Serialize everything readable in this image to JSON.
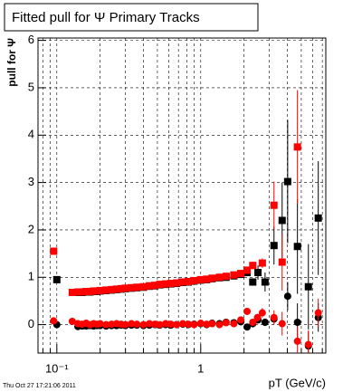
{
  "chart_data": {
    "type": "scatter",
    "title": "Fitted pull for  Ψ   Primary Tracks",
    "x_label": "pT (GeV/c)",
    "y_label": "pull for  Ψ",
    "timestamp": "Thu Oct 27 17:21:06 2011",
    "x_log": true,
    "grid": true,
    "xlim": [
      0.074,
      7.4
    ],
    "ylim": [
      -0.6,
      6.05
    ],
    "xticks": [
      {
        "value": 0.1,
        "label": "10⁻¹"
      },
      1
    ],
    "xminorticks": [
      0.08,
      0.09,
      0.2,
      0.3,
      0.4,
      0.5,
      0.6,
      0.7,
      0.8,
      0.9,
      2,
      3,
      4,
      5,
      6,
      7
    ],
    "yticks": [
      0,
      1,
      2,
      3,
      4,
      5,
      6
    ],
    "series": [
      {
        "color": "#000000",
        "marker": "square",
        "x": [
          0.1,
          0.14,
          0.15,
          0.16,
          0.17,
          0.18,
          0.19,
          0.2,
          0.22,
          0.24,
          0.26,
          0.28,
          0.3,
          0.33,
          0.36,
          0.4,
          0.44,
          0.48,
          0.52,
          0.57,
          0.62,
          0.68,
          0.75,
          0.82,
          0.9,
          1.0,
          1.1,
          1.2,
          1.35,
          1.5,
          1.7,
          1.9,
          2.1,
          2.3,
          2.5,
          2.8,
          3.23,
          3.68,
          4.02,
          4.7,
          5.6,
          6.56
        ],
        "values": [
          0.95,
          0.68,
          0.68,
          0.69,
          0.69,
          0.7,
          0.7,
          0.71,
          0.72,
          0.73,
          0.74,
          0.75,
          0.76,
          0.77,
          0.78,
          0.79,
          0.81,
          0.82,
          0.84,
          0.85,
          0.86,
          0.87,
          0.89,
          0.9,
          0.92,
          0.94,
          0.95,
          0.97,
          0.99,
          1.0,
          1.03,
          1.06,
          1.1,
          0.9,
          1.1,
          0.9,
          1.67,
          2.2,
          3.02,
          1.65,
          0.8,
          2.25
        ],
        "errors": [
          0.03,
          0.01,
          0.01,
          0.01,
          0.01,
          0.01,
          0.01,
          0.01,
          0.01,
          0.01,
          0.01,
          0.01,
          0.01,
          0.01,
          0.01,
          0.01,
          0.01,
          0.01,
          0.01,
          0.01,
          0.01,
          0.01,
          0.01,
          0.01,
          0.01,
          0.02,
          0.02,
          0.02,
          0.03,
          0.03,
          0.04,
          0.05,
          0.06,
          0.08,
          0.15,
          0.2,
          0.4,
          0.8,
          1.3,
          1.0,
          0.9,
          1.2
        ]
      },
      {
        "color": "#000000",
        "marker": "circle",
        "x": [
          0.1,
          0.14,
          0.15,
          0.16,
          0.17,
          0.18,
          0.19,
          0.2,
          0.22,
          0.24,
          0.26,
          0.28,
          0.3,
          0.33,
          0.36,
          0.4,
          0.44,
          0.48,
          0.52,
          0.57,
          0.62,
          0.68,
          0.75,
          0.82,
          0.9,
          1.0,
          1.1,
          1.2,
          1.35,
          1.5,
          1.7,
          1.9,
          2.1,
          2.3,
          2.5,
          2.8,
          3.23,
          4.02,
          4.7,
          5.6,
          6.56
        ],
        "values": [
          0.0,
          -0.04,
          -0.03,
          -0.03,
          -0.02,
          -0.03,
          -0.02,
          -0.02,
          -0.03,
          -0.02,
          -0.02,
          -0.01,
          -0.02,
          -0.01,
          -0.01,
          -0.02,
          -0.01,
          0.0,
          -0.01,
          0.0,
          -0.01,
          0.0,
          0.01,
          0.0,
          0.01,
          0.02,
          0.0,
          0.03,
          0.02,
          0.05,
          0.04,
          0.06,
          -0.05,
          0.02,
          0.1,
          0.05,
          0.12,
          0.6,
          0.05,
          -0.45,
          0.15
        ],
        "errors": [
          0.03,
          0.02,
          0.02,
          0.02,
          0.02,
          0.02,
          0.02,
          0.02,
          0.02,
          0.02,
          0.02,
          0.02,
          0.02,
          0.02,
          0.02,
          0.02,
          0.02,
          0.02,
          0.02,
          0.02,
          0.02,
          0.02,
          0.02,
          0.02,
          0.02,
          0.02,
          0.02,
          0.02,
          0.03,
          0.03,
          0.04,
          0.05,
          0.06,
          0.08,
          0.05,
          0.08,
          0.1,
          0.3,
          0.4,
          0.3,
          0.3
        ]
      },
      {
        "color": "#ff0000",
        "marker": "square",
        "x": [
          0.095,
          0.128,
          0.14,
          0.15,
          0.16,
          0.17,
          0.18,
          0.19,
          0.2,
          0.22,
          0.24,
          0.26,
          0.28,
          0.3,
          0.33,
          0.36,
          0.4,
          0.44,
          0.48,
          0.52,
          0.57,
          0.62,
          0.68,
          0.75,
          0.82,
          0.9,
          1.0,
          1.1,
          1.2,
          1.35,
          1.5,
          1.7,
          1.9,
          2.1,
          2.3,
          2.68,
          3.23,
          3.68,
          4.7
        ],
        "values": [
          1.55,
          0.68,
          0.69,
          0.69,
          0.7,
          0.7,
          0.71,
          0.71,
          0.72,
          0.73,
          0.74,
          0.75,
          0.76,
          0.77,
          0.78,
          0.79,
          0.8,
          0.82,
          0.83,
          0.85,
          0.86,
          0.87,
          0.88,
          0.9,
          0.91,
          0.93,
          0.95,
          0.96,
          0.98,
          1.0,
          1.02,
          1.05,
          1.08,
          1.15,
          1.25,
          1.3,
          2.52,
          1.32,
          3.75
        ],
        "errors": [
          0.03,
          0.02,
          0.01,
          0.01,
          0.01,
          0.01,
          0.01,
          0.01,
          0.01,
          0.01,
          0.01,
          0.01,
          0.01,
          0.01,
          0.01,
          0.01,
          0.01,
          0.01,
          0.01,
          0.01,
          0.01,
          0.01,
          0.01,
          0.01,
          0.01,
          0.01,
          0.02,
          0.02,
          0.02,
          0.03,
          0.03,
          0.04,
          0.05,
          0.06,
          0.08,
          0.1,
          0.5,
          0.6,
          1.2
        ]
      },
      {
        "color": "#ff0000",
        "marker": "circle",
        "x": [
          0.095,
          0.128,
          0.14,
          0.15,
          0.16,
          0.17,
          0.18,
          0.19,
          0.2,
          0.22,
          0.24,
          0.26,
          0.28,
          0.3,
          0.33,
          0.36,
          0.4,
          0.44,
          0.48,
          0.52,
          0.57,
          0.62,
          0.68,
          0.75,
          0.82,
          0.9,
          1.0,
          1.1,
          1.2,
          1.35,
          1.5,
          1.7,
          1.9,
          2.1,
          2.3,
          2.48,
          2.68,
          3.23,
          3.68,
          4.7,
          5.6,
          6.56
        ],
        "values": [
          0.08,
          0.07,
          0.02,
          0.01,
          0.03,
          0.0,
          0.02,
          0.01,
          0.02,
          0.0,
          0.01,
          0.02,
          0.01,
          0.0,
          0.02,
          0.01,
          0.0,
          0.02,
          0.01,
          0.0,
          0.02,
          0.01,
          0.0,
          0.02,
          0.01,
          0.0,
          0.03,
          0.01,
          0.02,
          0.0,
          0.04,
          0.02,
          0.1,
          0.28,
          0.05,
          0.15,
          0.25,
          0.15,
          0.02,
          -0.35,
          -0.42,
          0.25
        ],
        "errors": [
          0.03,
          0.02,
          0.02,
          0.02,
          0.02,
          0.02,
          0.02,
          0.02,
          0.02,
          0.02,
          0.02,
          0.02,
          0.02,
          0.02,
          0.02,
          0.02,
          0.02,
          0.02,
          0.02,
          0.02,
          0.02,
          0.02,
          0.02,
          0.02,
          0.02,
          0.02,
          0.02,
          0.02,
          0.02,
          0.02,
          0.02,
          0.02,
          0.02,
          0.02,
          0.02,
          0.08,
          0.1,
          0.15,
          0.25,
          0.3,
          0.3,
          0.3
        ]
      }
    ]
  }
}
